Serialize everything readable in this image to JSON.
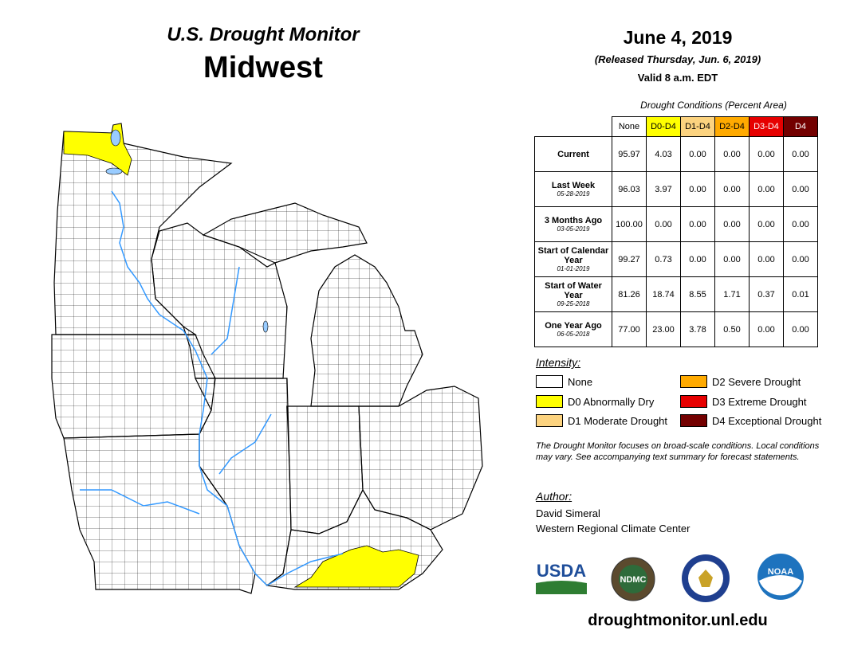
{
  "header": {
    "title_top": "U.S. Drought Monitor",
    "title_region": "Midwest",
    "date": "June 4, 2019",
    "released": "(Released Thursday, Jun. 6, 2019)",
    "valid": "Valid 8 a.m. EDT"
  },
  "table": {
    "caption": "Drought Conditions (Percent Area)",
    "columns": [
      "None",
      "D0-D4",
      "D1-D4",
      "D2-D4",
      "D3-D4",
      "D4"
    ],
    "column_colors": [
      "#ffffff",
      "#ffff00",
      "#fcd37f",
      "#ffaa00",
      "#e60000",
      "#730000"
    ],
    "rows": [
      {
        "label": "Current",
        "date": "",
        "values": [
          "95.97",
          "4.03",
          "0.00",
          "0.00",
          "0.00",
          "0.00"
        ]
      },
      {
        "label": "Last Week",
        "date": "05-28-2019",
        "values": [
          "96.03",
          "3.97",
          "0.00",
          "0.00",
          "0.00",
          "0.00"
        ]
      },
      {
        "label": "3 Months Ago",
        "date": "03-05-2019",
        "values": [
          "100.00",
          "0.00",
          "0.00",
          "0.00",
          "0.00",
          "0.00"
        ]
      },
      {
        "label": "Start of Calendar Year",
        "date": "01-01-2019",
        "values": [
          "99.27",
          "0.73",
          "0.00",
          "0.00",
          "0.00",
          "0.00"
        ]
      },
      {
        "label": "Start of Water Year",
        "date": "09-25-2018",
        "values": [
          "81.26",
          "18.74",
          "8.55",
          "1.71",
          "0.37",
          "0.01"
        ]
      },
      {
        "label": "One Year Ago",
        "date": "06-05-2018",
        "values": [
          "77.00",
          "23.00",
          "3.78",
          "0.50",
          "0.00",
          "0.00"
        ]
      }
    ]
  },
  "legend": {
    "heading": "Intensity:",
    "items": [
      {
        "label": "None",
        "color": "#ffffff"
      },
      {
        "label": "D0 Abnormally Dry",
        "color": "#ffff00"
      },
      {
        "label": "D1 Moderate Drought",
        "color": "#fcd37f"
      },
      {
        "label": "D2 Severe Drought",
        "color": "#ffaa00"
      },
      {
        "label": "D3 Extreme Drought",
        "color": "#e60000"
      },
      {
        "label": "D4 Exceptional Drought",
        "color": "#730000"
      }
    ]
  },
  "note": "The Drought Monitor focuses on broad-scale conditions. Local conditions may vary. See accompanying text summary for forecast statements.",
  "author": {
    "heading": "Author:",
    "name": "David Simeral",
    "org": "Western Regional Climate Center"
  },
  "logos": {
    "usda": "USDA",
    "ndmc": "NDMC",
    "noaa": "NOAA"
  },
  "website": "droughtmonitor.unl.edu",
  "map": {
    "d0_color": "#ffff00",
    "water_color": "#99ccff",
    "river_color": "#3399ff"
  }
}
